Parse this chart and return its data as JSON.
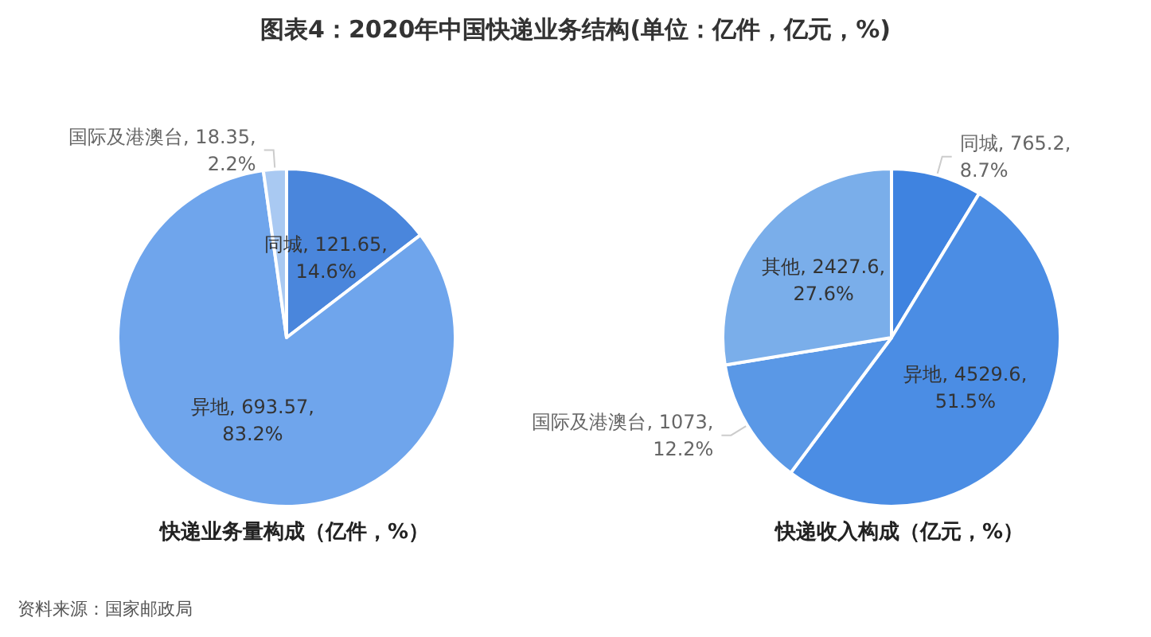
{
  "chart_data": [
    {
      "type": "pie",
      "title": "图表4：2020年中国快递业务结构(单位：亿件，亿元，%)",
      "subtitle": "快递业务量构成（亿件，%）",
      "categories": [
        "同城",
        "异地",
        "国际及港澳台"
      ],
      "values": [
        121.65,
        693.57,
        18.35
      ],
      "colors": [
        "#4a86dc",
        "#6fa5ec",
        "#a9c9f2"
      ],
      "value_labels": [
        "121.65, 14.6%",
        "693.57, 83.2%",
        "18.35, 2.2%"
      ],
      "annotations": [
        "资料来源：国家邮政局"
      ]
    },
    {
      "type": "pie",
      "subtitle": "快递收入构成（亿元，%）",
      "categories": [
        "同城",
        "异地",
        "国际及港澳台",
        "其他"
      ],
      "values": [
        765.2,
        4529.6,
        1073,
        2427.6
      ],
      "colors": [
        "#3f83e0",
        "#4b8de4",
        "#5a98e6",
        "#7aaeea"
      ],
      "value_labels": [
        "765.2, 8.7%",
        "4529.6, 51.5%",
        "1073, 12.2%",
        "2427.6, 27.6%"
      ]
    }
  ]
}
